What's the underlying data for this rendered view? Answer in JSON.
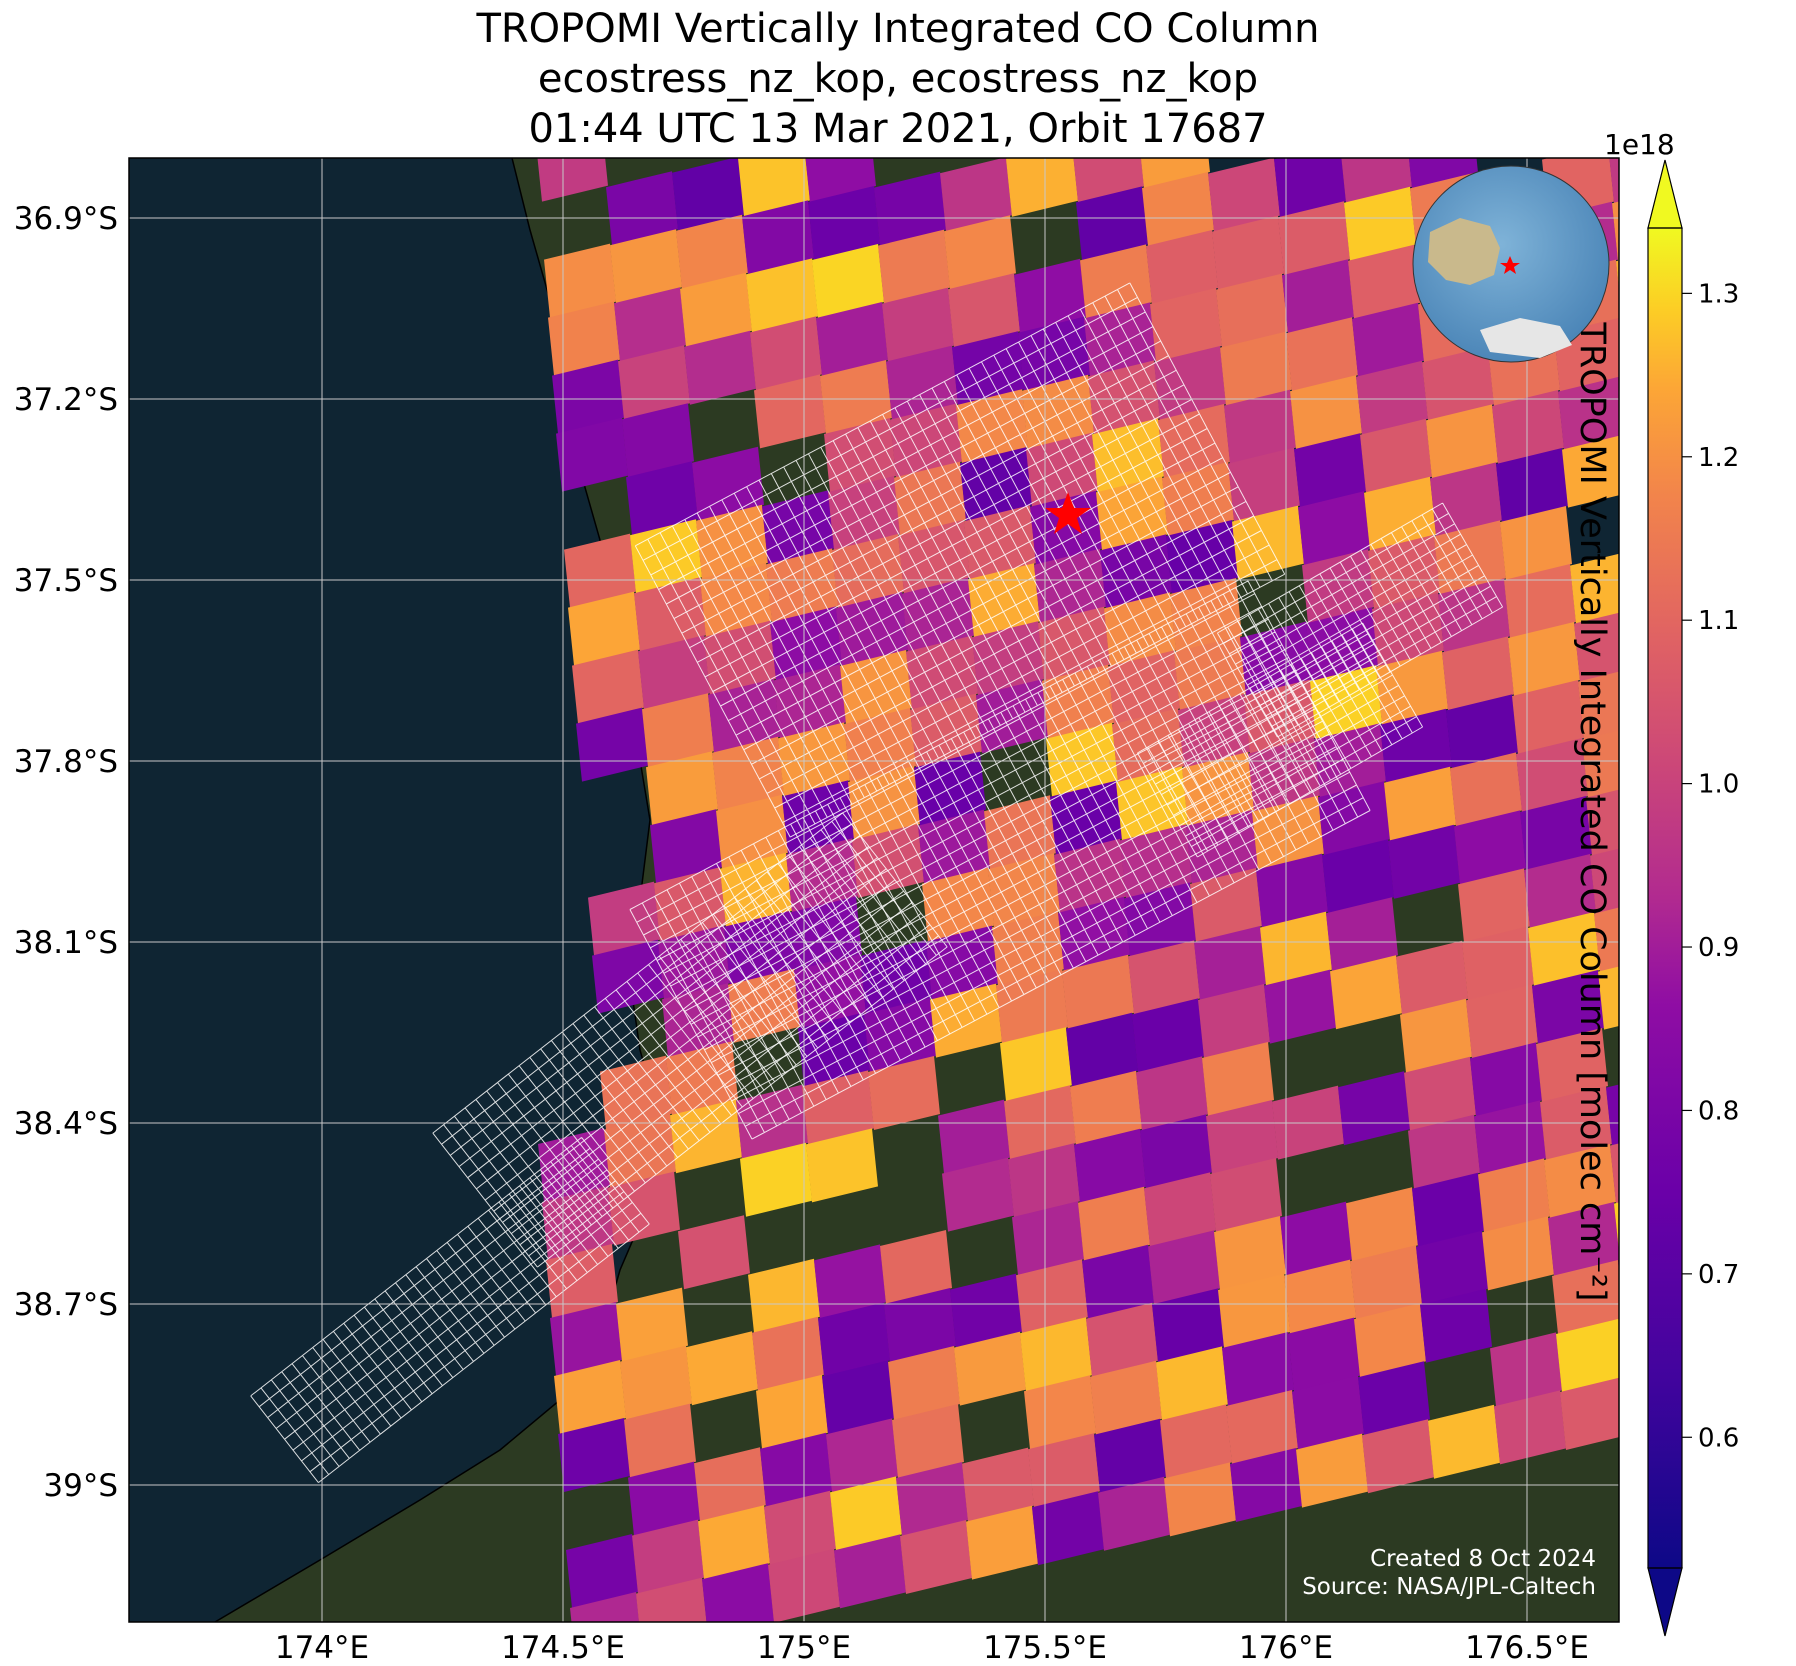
{
  "title": {
    "line1": "TROPOMI Vertically Integrated CO Column",
    "line2": "ecostress_nz_kop, ecostress_nz_kop",
    "line3": "01:44 UTC 13 Mar 2021, Orbit 17687"
  },
  "axes": {
    "lat_ticks": [
      "36.9°S",
      "37.2°S",
      "37.5°S",
      "37.8°S",
      "38.1°S",
      "38.4°S",
      "38.7°S",
      "39°S"
    ],
    "lon_ticks": [
      "174°E",
      "174.5°E",
      "175°E",
      "175.5°E",
      "176°E",
      "176.5°E"
    ]
  },
  "colorbar": {
    "label": "TROPOMI Vertically Integrated CO Column [molec cm⁻²]",
    "exponent": "1e18",
    "ticks": [
      "0.6",
      "0.7",
      "0.8",
      "0.9",
      "1.0",
      "1.1",
      "1.2",
      "1.3"
    ],
    "tick_values": [
      0.6,
      0.7,
      0.8,
      0.9,
      1.0,
      1.1,
      1.2,
      1.3
    ],
    "range": [
      0.52,
      1.34
    ],
    "colormap": "plasma"
  },
  "marker": {
    "symbol": "red-star",
    "color": "#ff0000"
  },
  "inset": {
    "type": "globe-locator",
    "marker_color": "#ff0000"
  },
  "footer": {
    "created": "Created 8 Oct 2024",
    "source": "Source: NASA/JPL-Caltech"
  },
  "colors": {
    "ocean": "#0f2533",
    "land": "#2c3a22",
    "lake": "#16302c",
    "gridline": "#c8c8c8",
    "footprint_outline": "#ffffff"
  }
}
